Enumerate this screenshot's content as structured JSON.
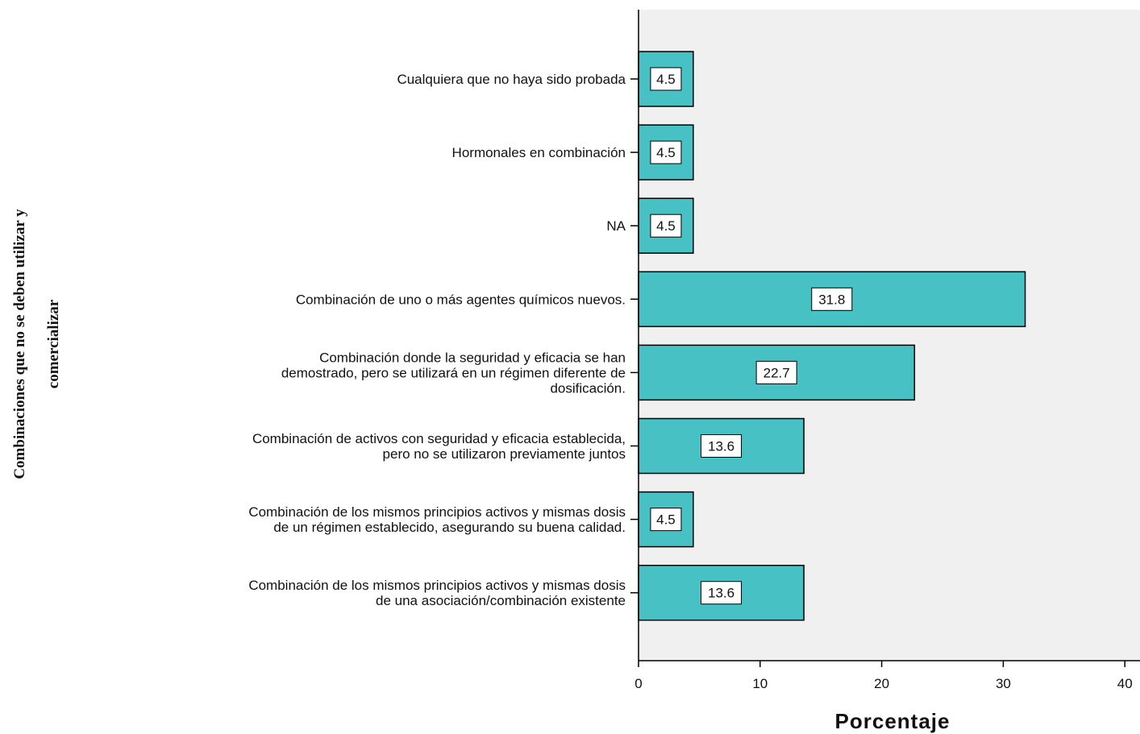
{
  "chart_data": {
    "type": "bar",
    "orientation": "horizontal",
    "categories": [
      [
        "Cualquiera que no haya sido probada"
      ],
      [
        "Hormonales en combinación"
      ],
      [
        "NA"
      ],
      [
        "Combinación de uno o más agentes químicos nuevos."
      ],
      [
        "Combinación donde la seguridad y eficacia se han",
        "demostrado, pero se utilizará en un régimen diferente de",
        "dosificación."
      ],
      [
        "Combinación de activos con seguridad y eficacia establecida,",
        "pero no se utilizaron previamente juntos"
      ],
      [
        "Combinación de los mismos principios activos y mismas dosis",
        "de un régimen establecido, asegurando su buena calidad."
      ],
      [
        "Combinación de los mismos principios activos y mismas dosis",
        "de una asociación/combinación existente"
      ]
    ],
    "values": [
      4.5,
      4.5,
      4.5,
      31.8,
      22.7,
      13.6,
      4.5,
      13.6
    ],
    "data_labels": [
      "4.5",
      "4.5",
      "4.5",
      "31.8",
      "22.7",
      "13.6",
      "4.5",
      "13.6"
    ],
    "xlabel": "Porcentaje",
    "ylabel": [
      "Combinaciones que no se deben utilizar y",
      "comercializar"
    ],
    "xlim": [
      0,
      40
    ],
    "xticks": [
      0,
      10,
      20,
      30,
      40
    ],
    "grid": false,
    "colors": {
      "bar": "#47C1C4",
      "plot_background": "#F0F0F0",
      "axis": "#000000",
      "label_box": "#FFFFFF"
    }
  }
}
